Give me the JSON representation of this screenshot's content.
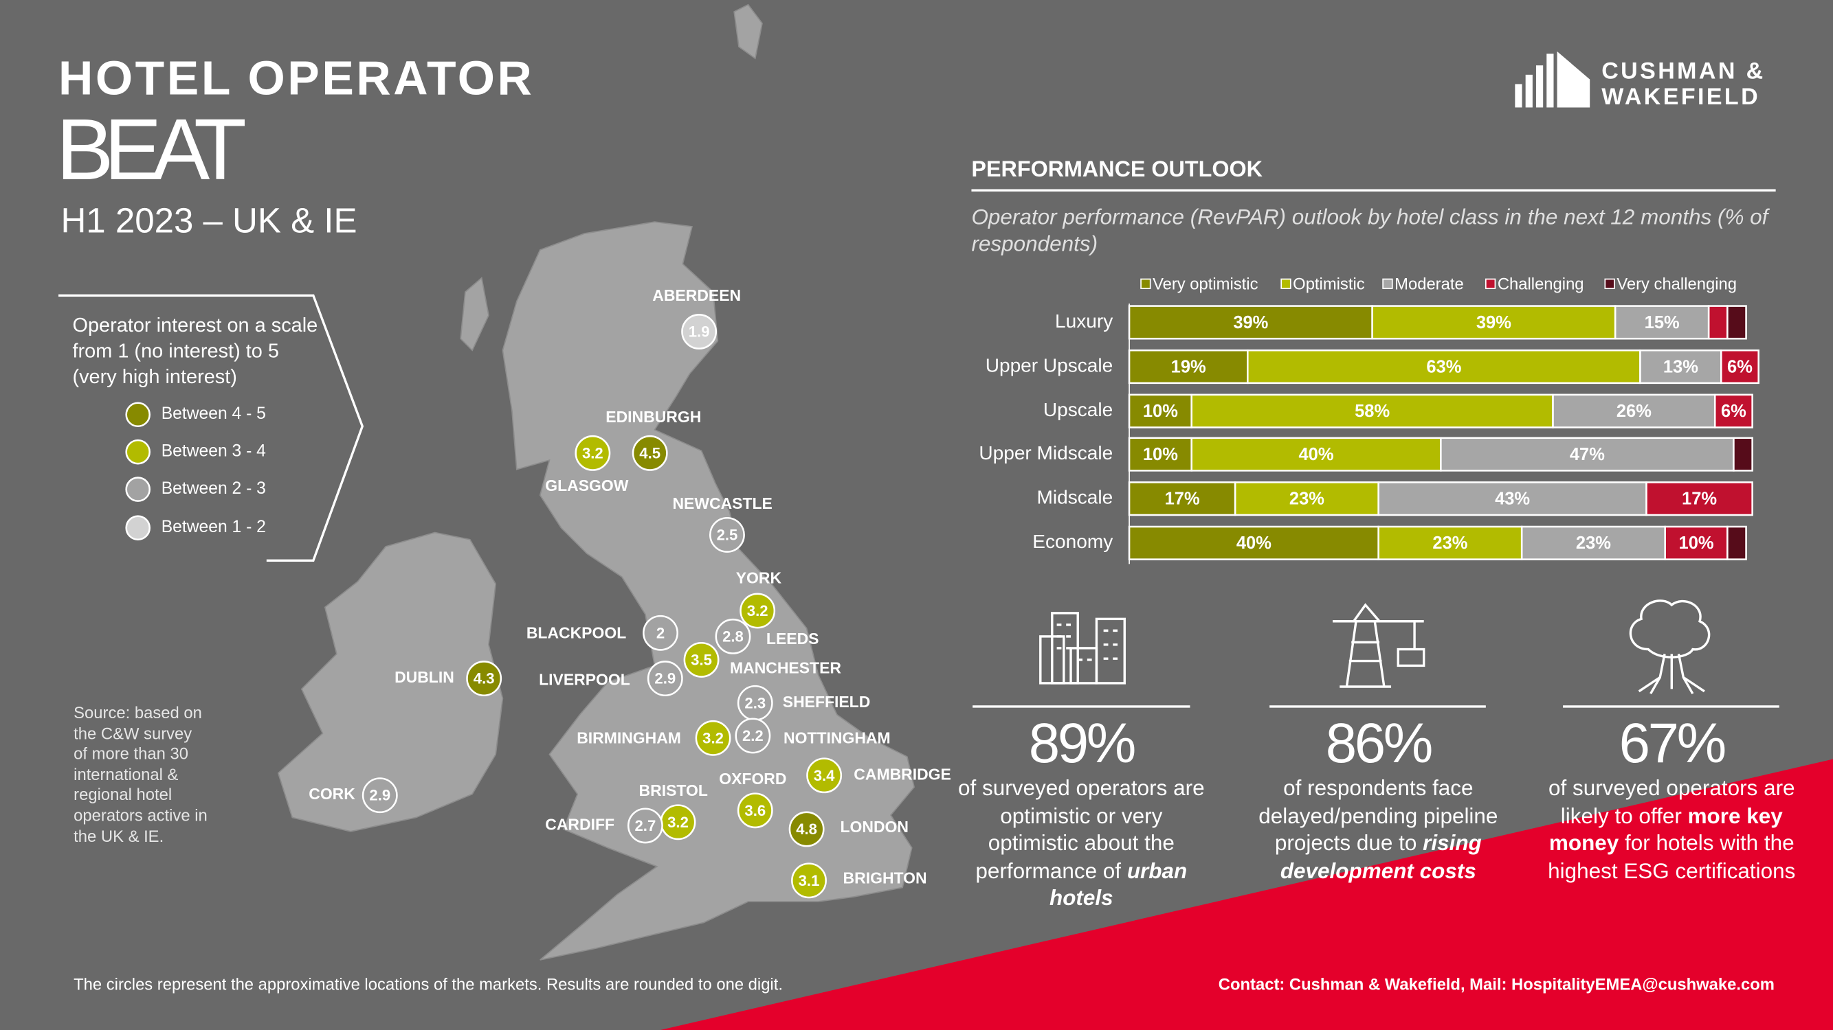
{
  "header": {
    "title": "HOTEL OPERATOR",
    "title2": "BEAT",
    "subtitle": "H1 2023 – UK & IE",
    "logo": [
      "CUSHMAN &",
      "WAKEFIELD"
    ]
  },
  "map": {
    "intro": "Operator interest on a scale from 1 (no interest) to 5 (very high interest)",
    "legend": [
      {
        "label": "Between 4 - 5",
        "color": "#878a00"
      },
      {
        "label": "Between 3 - 4",
        "color": "#b2bb00"
      },
      {
        "label": "Between 2 - 3",
        "color": "#a2a2a2"
      },
      {
        "label": "Between 1 - 2",
        "color": "#d2d2d2"
      }
    ],
    "markets": [
      {
        "name": "ABERDEEN",
        "score": 1.9,
        "color": "#d2d2d2"
      },
      {
        "name": "EDINBURGH",
        "score": 4.5,
        "color": "#878a00"
      },
      {
        "name": "GLASGOW",
        "score": 3.2,
        "color": "#b2bb00"
      },
      {
        "name": "NEWCASTLE",
        "score": 2.5,
        "color": "#a2a2a2"
      },
      {
        "name": "YORK",
        "score": 3.2,
        "color": "#b2bb00"
      },
      {
        "name": "BLACKPOOL",
        "score": 2.0,
        "color": "#a2a2a2"
      },
      {
        "name": "LEEDS",
        "score": 2.8,
        "color": "#a2a2a2"
      },
      {
        "name": "MANCHESTER",
        "score": 3.5,
        "color": "#b2bb00"
      },
      {
        "name": "LIVERPOOL",
        "score": 2.9,
        "color": "#a2a2a2"
      },
      {
        "name": "SHEFFIELD",
        "score": 2.3,
        "color": "#a2a2a2"
      },
      {
        "name": "BIRMINGHAM",
        "score": 3.2,
        "color": "#b2bb00"
      },
      {
        "name": "NOTTINGHAM",
        "score": 2.2,
        "color": "#a2a2a2"
      },
      {
        "name": "CAMBRIDGE",
        "score": 3.4,
        "color": "#b2bb00"
      },
      {
        "name": "OXFORD",
        "score": 3.6,
        "color": "#b2bb00"
      },
      {
        "name": "BRISTOL",
        "score": 3.2,
        "color": "#b2bb00"
      },
      {
        "name": "CARDIFF",
        "score": 2.7,
        "color": "#a2a2a2"
      },
      {
        "name": "LONDON",
        "score": 4.8,
        "color": "#878a00"
      },
      {
        "name": "BRIGHTON",
        "score": 3.1,
        "color": "#b2bb00"
      },
      {
        "name": "DUBLIN",
        "score": 4.3,
        "color": "#878a00"
      },
      {
        "name": "CORK",
        "score": 2.9,
        "color": "#a2a2a2"
      }
    ],
    "source": "Source: based on the C&W survey of more than 30 international & regional hotel operators active in the UK & IE.",
    "note": "The circles represent the approximative locations of the markets. Results are rounded to one digit."
  },
  "chart_data": {
    "type": "bar",
    "orientation": "horizontal",
    "stacked": true,
    "title": "PERFORMANCE OUTLOOK",
    "subtitle": "Operator performance (RevPAR) outlook by hotel class in the next 12 months (% of respondents)",
    "categories": [
      "Luxury",
      "Upper Upscale",
      "Upscale",
      "Upper Midscale",
      "Midscale",
      "Economy"
    ],
    "series": [
      {
        "name": "Very optimistic",
        "color": "#878a00",
        "values": [
          39,
          19,
          10,
          10,
          17,
          40
        ],
        "value_labels": [
          "39%",
          "19%",
          "10%",
          "10%",
          "17%",
          "40%"
        ]
      },
      {
        "name": "Optimistic",
        "color": "#b2bb00",
        "values": [
          39,
          63,
          58,
          40,
          23,
          23
        ],
        "value_labels": [
          "39%",
          "63%",
          "58%",
          "40%",
          "23%",
          "23%"
        ]
      },
      {
        "name": "Moderate",
        "color": "#a6a6a6",
        "values": [
          15,
          13,
          26,
          47,
          43,
          23
        ],
        "value_labels": [
          "15%",
          "13%",
          "26%",
          "47%",
          "43%",
          "23%"
        ]
      },
      {
        "name": "Challenging",
        "color": "#c0112f",
        "values": [
          3,
          6,
          6,
          0,
          17,
          10
        ],
        "value_labels": [
          null,
          "6%",
          "6%",
          null,
          "17%",
          "10%"
        ]
      },
      {
        "name": "Very challenging",
        "color": "#560c1a",
        "values": [
          3,
          0,
          0,
          3,
          0,
          3
        ],
        "value_labels": [
          null,
          null,
          null,
          null,
          null,
          null
        ]
      }
    ]
  },
  "stats": [
    {
      "figure": "89%",
      "parts": [
        {
          "text": "of surveyed operators are optimistic or very optimistic about the performance of"
        },
        {
          "text": "urban hotels",
          "style": "bold-italic"
        }
      ]
    },
    {
      "figure": "86%",
      "parts": [
        {
          "text": "of respondents face delayed/pending pipeline projects due to"
        },
        {
          "text": "rising development costs",
          "style": "bold-italic"
        }
      ]
    },
    {
      "figure": "67%",
      "parts": [
        {
          "text": "of surveyed operators are likely to offer"
        },
        {
          "text": "more key money",
          "style": "bold"
        },
        {
          "text": " for hotels with the highest ESG certifications"
        }
      ]
    }
  ],
  "contact": "Contact: Cushman & Wakefield, Mail: HospitalityEMEA@cushwake.com"
}
